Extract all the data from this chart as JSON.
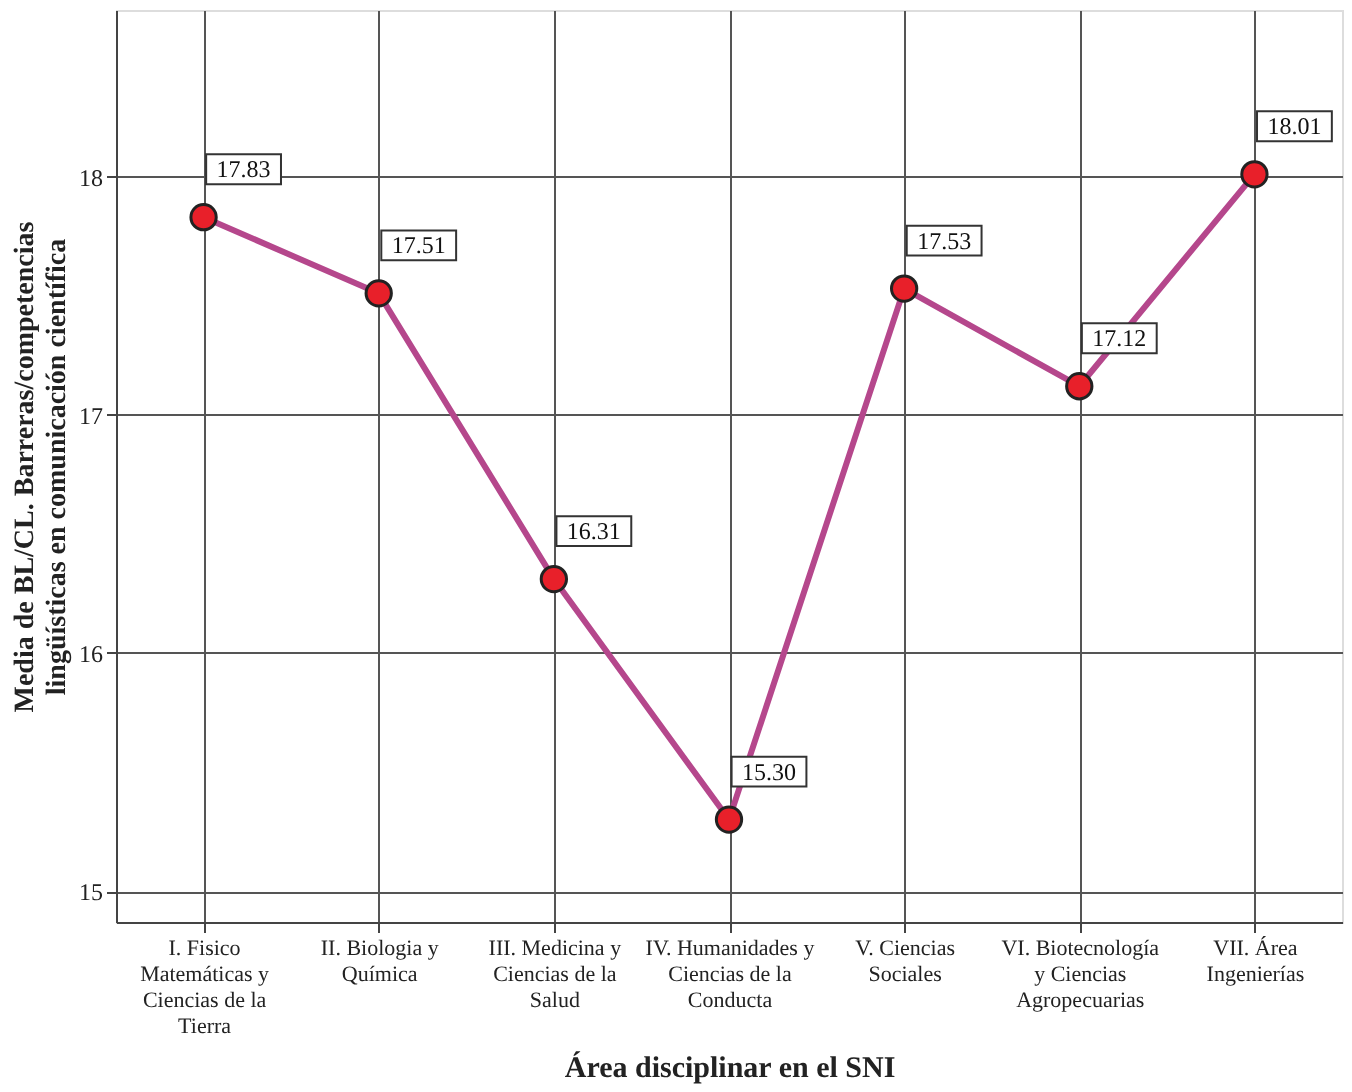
{
  "chart_data": {
    "type": "line",
    "xlabel": "Área disciplinar en el SNI",
    "ylabel": "Media de BL/CL. Barreras/competencias lingüísticas en comunicación científica",
    "categories": [
      "I. Fisico Matemáticas y Ciencias de la Tierra",
      "II. Biologia y Química",
      "III. Medicina y Ciencias de la Salud",
      "IV. Humanidades y Ciencias de la Conducta",
      "V. Ciencias Sociales",
      "VI. Biotecnología y Ciencias Agropecuarias",
      "VII. Área Ingenierías"
    ],
    "series": [
      {
        "color": "#b5478c",
        "values": [
          17.83,
          17.51,
          16.31,
          15.3,
          17.53,
          17.12,
          18.01
        ]
      }
    ],
    "value_labels": [
      "17.83",
      "17.51",
      "16.31",
      "15.30",
      "17.53",
      "17.12",
      "18.01"
    ],
    "ylim": [
      14.87,
      18.7
    ],
    "yticks": [
      15,
      16,
      17,
      18
    ],
    "grid": true,
    "marker": "circle",
    "line_style": "solid"
  }
}
